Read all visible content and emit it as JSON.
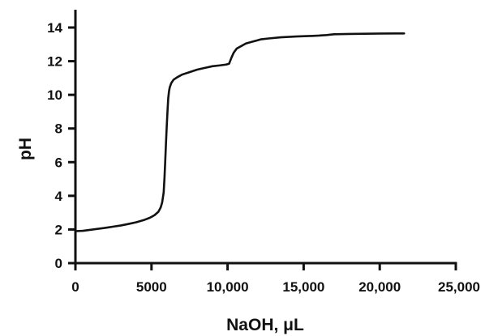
{
  "chart_data": {
    "type": "line",
    "title": "",
    "xlabel": "NaOH, μL",
    "ylabel": "pH",
    "xlim": [
      0,
      25000
    ],
    "ylim": [
      0,
      14
    ],
    "x_ticks": [
      0,
      5000,
      10000,
      15000,
      20000,
      25000
    ],
    "x_tick_labels": [
      "0",
      "5000",
      "10,000",
      "15,000",
      "20,000",
      "25,000"
    ],
    "y_ticks": [
      0,
      2,
      4,
      6,
      8,
      10,
      12,
      14
    ],
    "y_tick_labels": [
      "0",
      "2",
      "4",
      "6",
      "8",
      "10",
      "12",
      "14"
    ],
    "grid": false,
    "legend": "none",
    "line_color": "#111111",
    "series": [
      {
        "x": [
          0,
          500,
          1000,
          1500,
          2000,
          2500,
          3000,
          3500,
          4000,
          4500,
          4900,
          5200,
          5450,
          5600,
          5700,
          5800,
          5850,
          5900,
          5950,
          6000,
          6050,
          6100,
          6150,
          6200,
          6300,
          6450,
          6700,
          7000,
          7500,
          8000,
          8500,
          9000,
          9500,
          9900,
          10100,
          10250,
          10400,
          10600,
          10900,
          11200,
          11600,
          12000,
          12200,
          12700,
          13500,
          14500,
          15500,
          16000,
          16500,
          17000,
          18000,
          19000,
          20000,
          21000,
          21600
        ],
        "y": [
          1.9,
          1.92,
          1.98,
          2.04,
          2.1,
          2.17,
          2.24,
          2.33,
          2.43,
          2.56,
          2.7,
          2.85,
          3.05,
          3.3,
          3.6,
          4.2,
          5.0,
          6.0,
          7.1,
          8.1,
          9.0,
          9.8,
          10.2,
          10.45,
          10.7,
          10.9,
          11.05,
          11.2,
          11.35,
          11.5,
          11.6,
          11.7,
          11.75,
          11.8,
          11.85,
          12.2,
          12.5,
          12.75,
          12.9,
          13.05,
          13.15,
          13.25,
          13.3,
          13.35,
          13.42,
          13.47,
          13.5,
          13.52,
          13.55,
          13.6,
          13.62,
          13.63,
          13.64,
          13.65,
          13.65
        ]
      }
    ]
  }
}
